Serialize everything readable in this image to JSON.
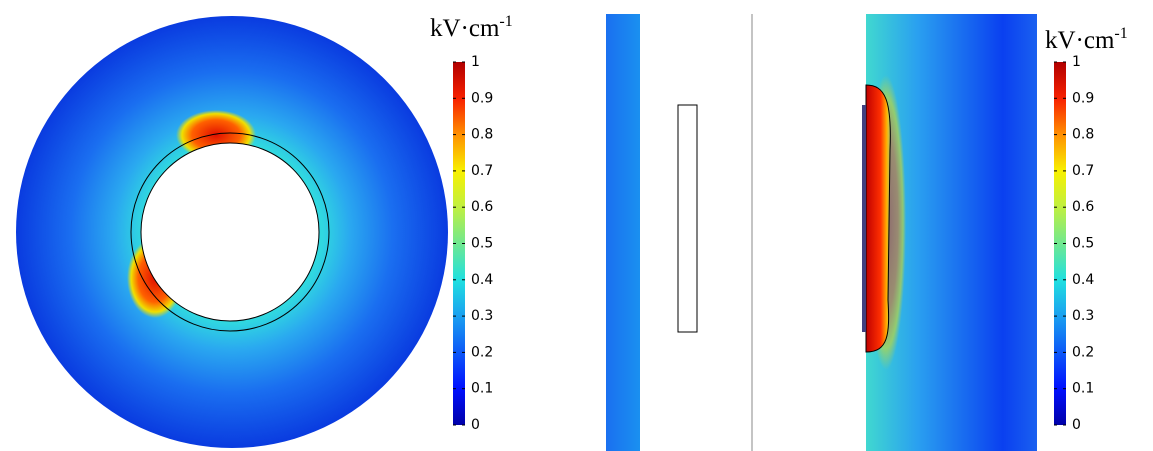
{
  "colorbars": [
    {
      "unit": "kV·cm",
      "unit_exponent": "-1",
      "lim": [
        0,
        1
      ],
      "ticks": [
        0,
        0.1,
        0.2,
        0.3,
        0.4,
        0.5,
        0.6,
        0.7,
        0.8,
        0.9,
        1
      ]
    },
    {
      "unit": "kV·cm",
      "unit_exponent": "-1",
      "lim": [
        0,
        1
      ],
      "ticks": [
        0,
        0.1,
        0.2,
        0.3,
        0.4,
        0.5,
        0.6,
        0.7,
        0.8,
        0.9,
        1
      ]
    }
  ]
}
